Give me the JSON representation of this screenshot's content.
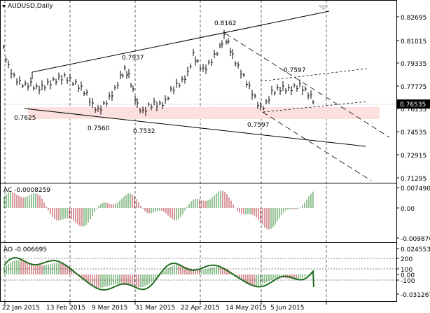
{
  "window": {
    "symbol_title": "AUDUSD,Daily",
    "colors": {
      "background": "#ffffff",
      "axis": "#000000",
      "grid_dash": "#000000",
      "bull_bar": "#000000",
      "zone_fill": "#fbe0df",
      "ac_up": "#2f8a2f",
      "ac_down": "#b0303a",
      "ao_line": "#1f6e1f",
      "current_price_box": "#000000",
      "current_price_text": "#ffffff"
    }
  },
  "price_chart": {
    "y_axis_labels": [
      "0.82695",
      "0.81015",
      "0.79335",
      "0.77775",
      "0.76135",
      "0.74535",
      "0.72915",
      "0.71295"
    ],
    "current_price": "0.76535",
    "annotations": [
      "0.8162",
      "0.7937",
      "0.7597",
      "0.7625",
      "0.7560",
      "0.7532",
      "0.7597"
    ]
  },
  "ac_panel": {
    "title": "AC -0.0008259",
    "y_axis_labels": [
      "0.007490",
      "0.00",
      "-0.009876"
    ]
  },
  "ao_panel": {
    "title": "AO -0.006695",
    "y_axis_labels": [
      "0.024553",
      "200",
      "100",
      "0.00",
      "-100",
      "-0.031267"
    ]
  },
  "time_axis": {
    "labels": [
      "22 Jan 2015",
      "13 Feb 2015",
      "9 Mar 2015",
      "31 Mar 2015",
      "22 Apr 2015",
      "14 May 2015",
      "5 Jun 2015"
    ]
  }
}
